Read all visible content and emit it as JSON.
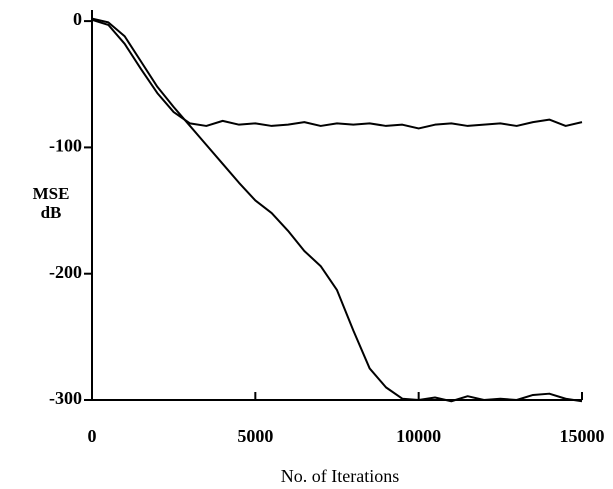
{
  "chart_data": {
    "type": "line",
    "xlabel": "No. of Iterations",
    "ylabel": "MSE dB",
    "x": [
      0,
      500,
      1000,
      1500,
      2000,
      2500,
      3000,
      3500,
      4000,
      4500,
      5000,
      5500,
      6000,
      6500,
      7000,
      7500,
      8000,
      8500,
      9000,
      9500,
      10000,
      10500,
      11000,
      11500,
      12000,
      12500,
      13000,
      13500,
      14000,
      14500,
      15000
    ],
    "series": [
      {
        "color": "#000000",
        "values": [
          1,
          -3,
          -18,
          -38,
          -57,
          -72,
          -81,
          -83,
          -79,
          -82,
          -81,
          -83,
          -82,
          -80,
          -83,
          -81,
          -82,
          -81,
          -83,
          -82,
          -85,
          -82,
          -81,
          -83,
          -82,
          -81,
          -83,
          -80,
          -78,
          -83,
          -80
        ]
      },
      {
        "color": "#000000",
        "values": [
          2,
          -1,
          -12,
          -32,
          -52,
          -68,
          -83,
          -98,
          -113,
          -128,
          -142,
          -152,
          -166,
          -182,
          -194,
          -213,
          -245,
          -275,
          -290,
          -299,
          -300,
          -298,
          -301,
          -297,
          -300,
          -299,
          -300,
          -296,
          -295,
          -299,
          -301
        ]
      }
    ],
    "xlim": [
      0,
      15000
    ],
    "xticks": [
      0,
      5000,
      10000,
      15000
    ],
    "ylim": [
      -300,
      8
    ],
    "yticks": [
      0,
      -100,
      -200,
      -300
    ]
  }
}
